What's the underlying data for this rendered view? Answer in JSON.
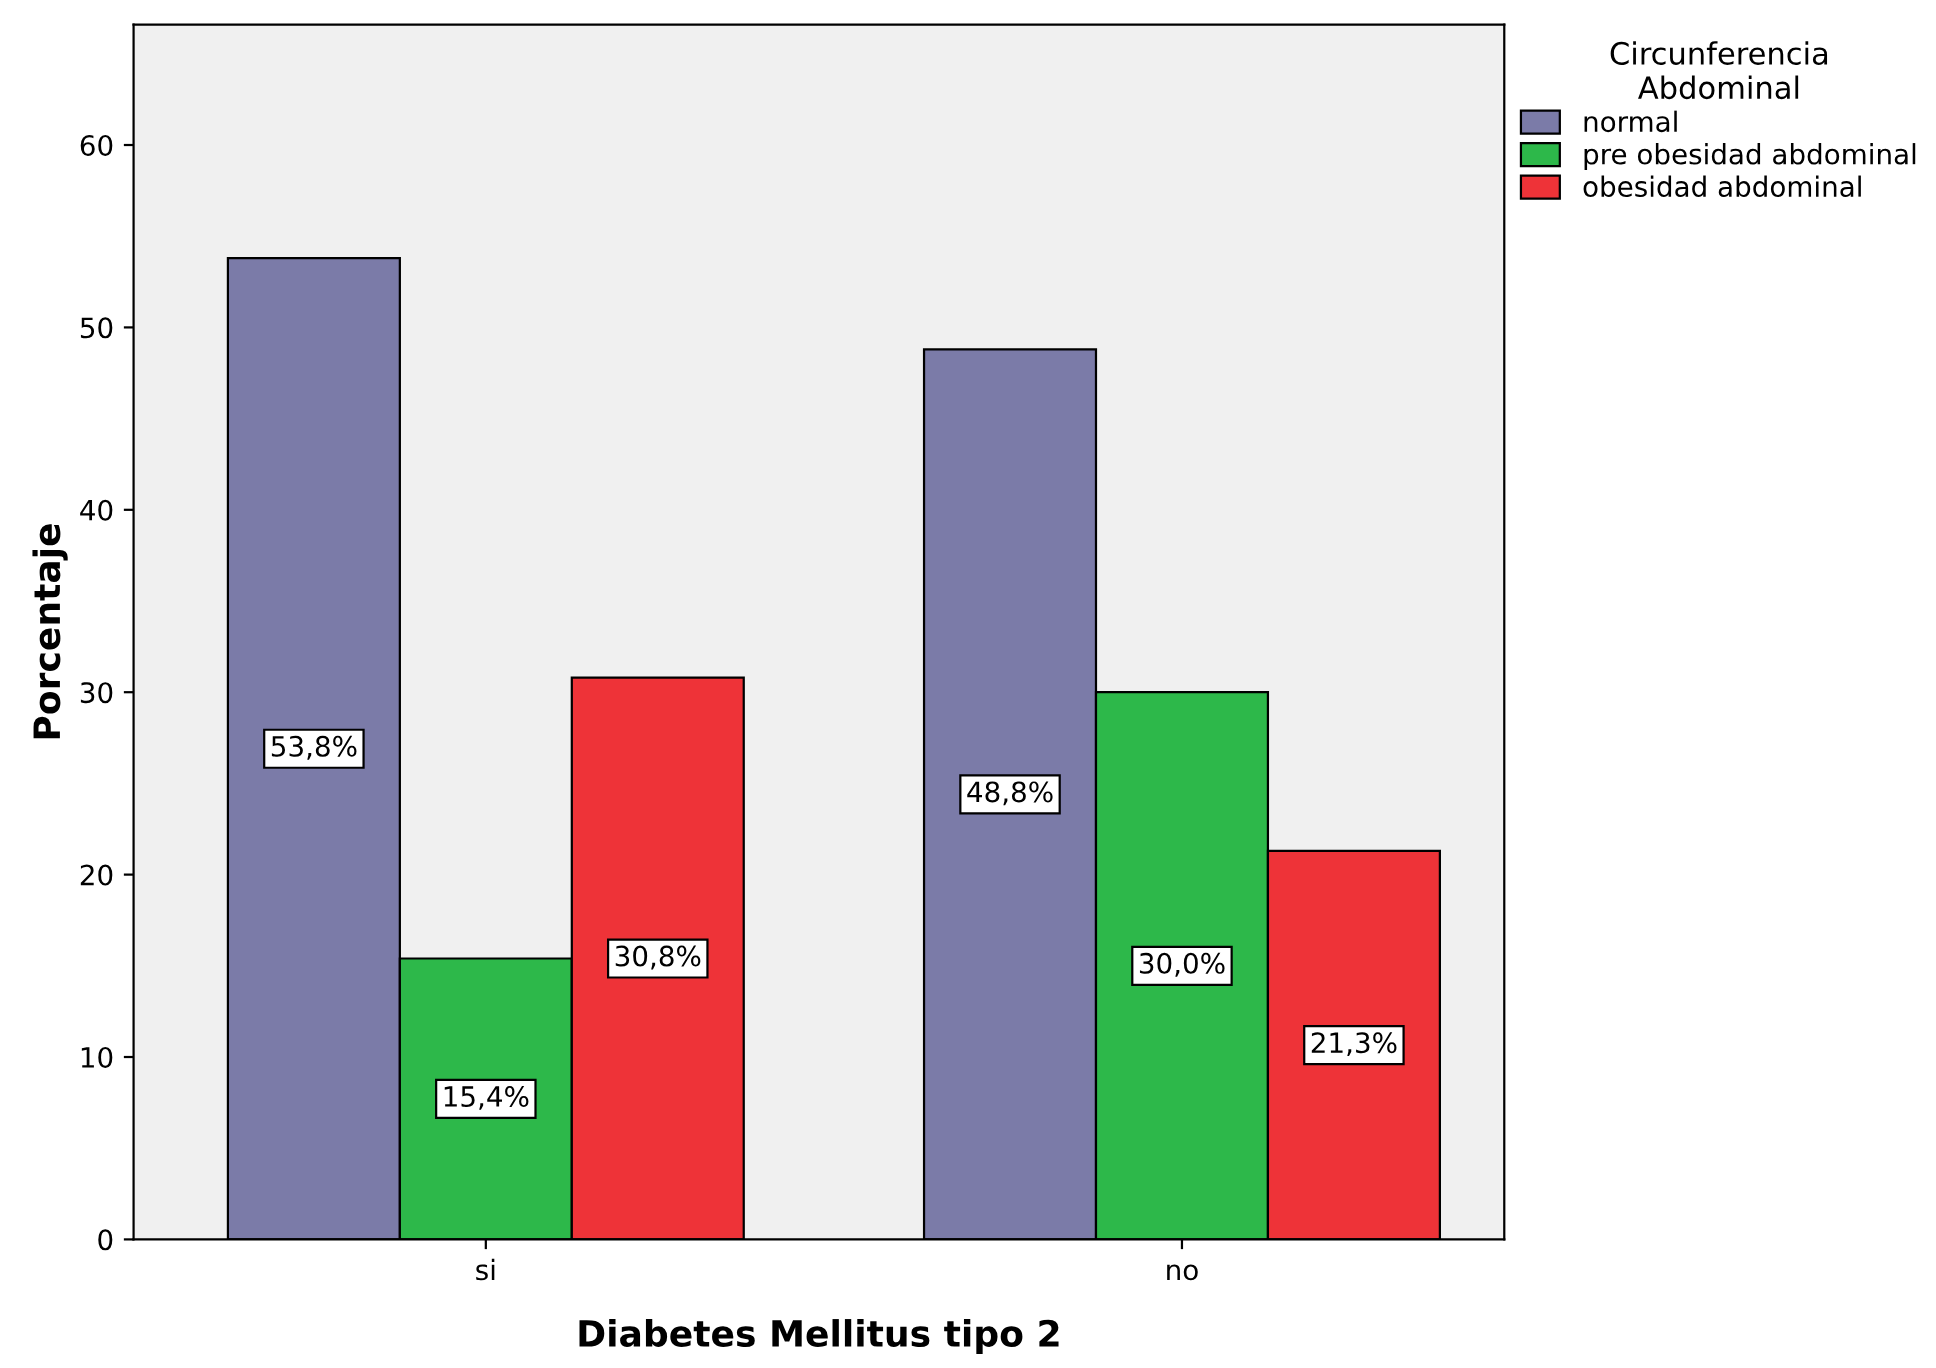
{
  "chart_data": {
    "type": "bar",
    "xlabel": "Diabetes Mellitus tipo 2",
    "ylabel": "Porcentaje",
    "legend_title": "Circunferencia\nAbdominal",
    "categories": [
      "si",
      "no"
    ],
    "series": [
      {
        "name": "normal",
        "color": "#7b7ba8",
        "values": [
          53.8,
          48.8
        ],
        "value_labels": [
          "53,8%",
          "48,8%"
        ]
      },
      {
        "name": "pre obesidad abdominal",
        "color": "#2db84a",
        "values": [
          15.4,
          30.0
        ],
        "value_labels": [
          "15,4%",
          "30,0%"
        ]
      },
      {
        "name": "obesidad abdominal",
        "color": "#ee3338",
        "values": [
          30.8,
          21.3
        ],
        "value_labels": [
          "30,8%",
          "21,3%"
        ]
      }
    ],
    "ylim": [
      0,
      66.6
    ],
    "yticks": [
      0,
      10,
      20,
      30,
      40,
      50,
      60
    ],
    "grid": false,
    "legend": "top right"
  }
}
